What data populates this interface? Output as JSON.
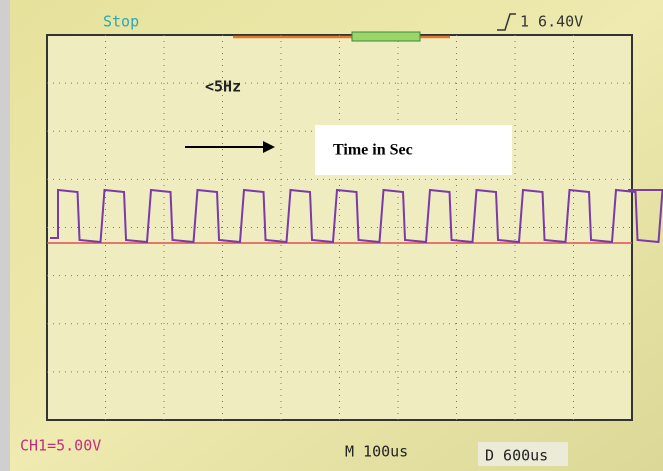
{
  "status": "Stop",
  "trigger": "1 6.40V",
  "frequency": "<5Hz",
  "annotation": "Time in Sec",
  "footer": {
    "channel": "CH1=5.00V",
    "timebase": "M 100us",
    "delay": "D 600us"
  }
}
